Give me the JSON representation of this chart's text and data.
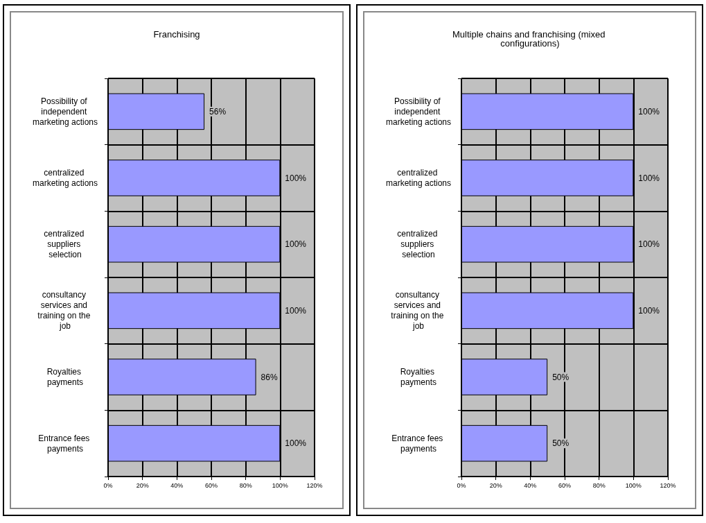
{
  "chart_data": [
    {
      "type": "bar",
      "orientation": "horizontal",
      "title": "Franchising",
      "categories": [
        "Possibility of independent marketing actions",
        "centralized marketing actions",
        "centralized suppliers selection",
        "consultancy services and training on the job",
        "Royalties payments",
        "Entrance fees payments"
      ],
      "values": [
        56,
        100,
        100,
        100,
        86,
        100
      ],
      "color": "#9999ff",
      "value_labels": [
        "56%",
        "100%",
        "100%",
        "100%",
        "86%",
        "100%"
      ],
      "xlim": [
        0,
        120
      ],
      "xticks": [
        {
          "value": 0,
          "label": "0%"
        },
        {
          "value": 20,
          "label": "20%"
        },
        {
          "value": 40,
          "label": "40%"
        },
        {
          "value": 60,
          "label": "60%"
        },
        {
          "value": 80,
          "label": "80%"
        },
        {
          "value": 100,
          "label": "100%"
        },
        {
          "value": 120,
          "label": "120%"
        }
      ],
      "grid": true
    },
    {
      "type": "bar",
      "orientation": "horizontal",
      "title": "Multiple chains and franchising (mixed configurations)",
      "categories": [
        "Possibility of independent marketing actions",
        "centralized marketing actions",
        "centralized suppliers selection",
        "consultancy services and training on the job",
        "Royalties payments",
        "Entrance fees payments"
      ],
      "values": [
        100,
        100,
        100,
        100,
        50,
        50
      ],
      "color": "#9999ff",
      "value_labels": [
        "100%",
        "100%",
        "100%",
        "100%",
        "50%",
        "50%"
      ],
      "xlim": [
        0,
        120
      ],
      "xticks": [
        {
          "value": 0,
          "label": "0%"
        },
        {
          "value": 20,
          "label": "20%"
        },
        {
          "value": 40,
          "label": "40%"
        },
        {
          "value": 60,
          "label": "60%"
        },
        {
          "value": 80,
          "label": "80%"
        },
        {
          "value": 100,
          "label": "100%"
        },
        {
          "value": 120,
          "label": "120%"
        }
      ],
      "grid": true
    }
  ]
}
